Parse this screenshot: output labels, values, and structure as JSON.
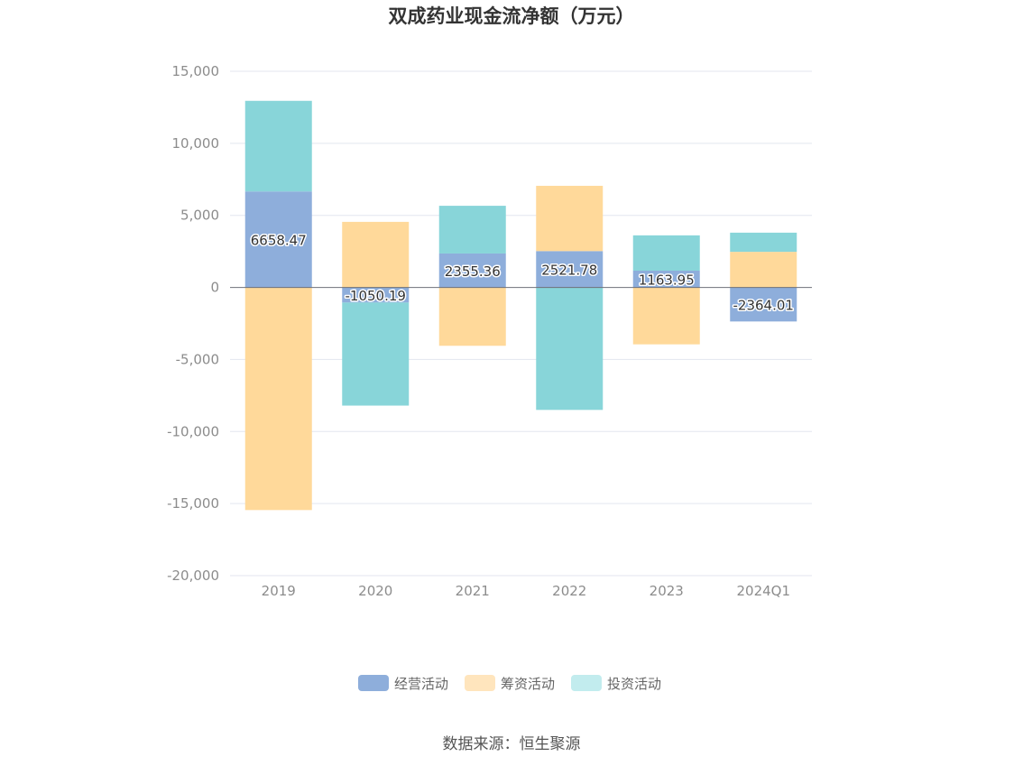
{
  "chart_data": {
    "type": "bar",
    "stacked": true,
    "title": "双成药业现金流净额（万元）",
    "categories": [
      "2019",
      "2020",
      "2021",
      "2022",
      "2023",
      "2024Q1"
    ],
    "series": [
      {
        "name": "经营活动",
        "color": "#8eaedb",
        "values": [
          6658.47,
          -1050.19,
          2355.36,
          2521.78,
          1163.95,
          -2364.01
        ]
      },
      {
        "name": "筹资活动",
        "color": "#ffd99a",
        "values": [
          -15450,
          4550,
          -4050,
          4530,
          -3950,
          2470
        ]
      },
      {
        "name": "投资活动",
        "color": "#88d5d9",
        "values": [
          6290,
          -7150,
          3310,
          -8500,
          2450,
          1330
        ]
      }
    ],
    "data_labels_series": "经营活动",
    "ylim": [
      -20000,
      15000
    ],
    "yticks": [
      15000,
      10000,
      5000,
      0,
      -5000,
      -10000,
      -15000,
      -20000
    ],
    "ytick_labels": [
      "15,000",
      "10,000",
      "5,000",
      "0",
      "-5,000",
      "-10,000",
      "-15,000",
      "-20,000"
    ],
    "xlabel": "",
    "ylabel": "",
    "grid": true,
    "legend_position": "bottom",
    "legend_colors": [
      "#8eaedb",
      "#ffe5bd",
      "#c2ecee"
    ]
  },
  "source": "数据来源：恒生聚源"
}
